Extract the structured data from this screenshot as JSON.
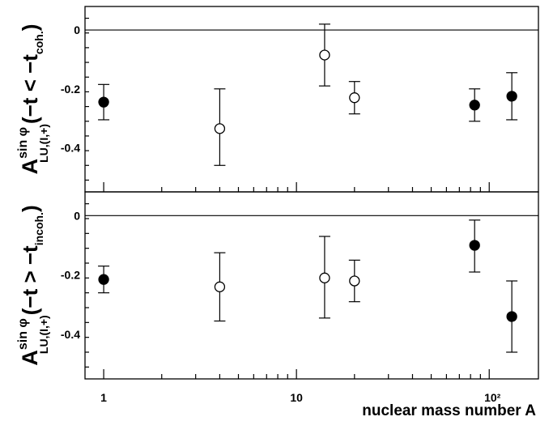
{
  "chart_data": [
    {
      "type": "scatter",
      "panel": "upper",
      "ylabel": {
        "main": "A",
        "superscript": "sin φ",
        "subscript": "LU,(I,+)",
        "condition_pre": "(−t < −t",
        "condition_sub": "coh.",
        "condition_post": ")"
      },
      "xscale": "log",
      "xlim": [
        0.8,
        180
      ],
      "ylim": [
        -0.55,
        0.08
      ],
      "yticks": [
        0,
        -0.2,
        -0.4
      ],
      "ytick_labels": [
        "0",
        "-0.2",
        "-0.4"
      ],
      "zero_line": true,
      "series": [
        {
          "marker": "filled",
          "points": [
            {
              "x": 1,
              "y": -0.245,
              "err_low": -0.305,
              "err_high": -0.185
            },
            {
              "x": 84,
              "y": -0.255,
              "err_low": -0.31,
              "err_high": -0.2
            },
            {
              "x": 131,
              "y": -0.225,
              "err_low": -0.305,
              "err_high": -0.145
            }
          ]
        },
        {
          "marker": "open",
          "points": [
            {
              "x": 4,
              "y": -0.335,
              "err_low": -0.46,
              "err_high": -0.2
            },
            {
              "x": 14,
              "y": -0.085,
              "err_low": -0.19,
              "err_high": 0.02
            },
            {
              "x": 20,
              "y": -0.23,
              "err_low": -0.285,
              "err_high": -0.175
            }
          ]
        }
      ]
    },
    {
      "type": "scatter",
      "panel": "lower",
      "ylabel": {
        "main": "A",
        "superscript": "sin φ",
        "subscript": "LU,(I,+)",
        "condition_pre": "(−t > −t",
        "condition_sub": "incoh.",
        "condition_post": ")"
      },
      "xscale": "log",
      "xlim": [
        0.8,
        180
      ],
      "xlabel": "nuclear mass number A",
      "xtick_labels": [
        "1",
        "10",
        "10²"
      ],
      "ylim": [
        -0.55,
        0.08
      ],
      "yticks": [
        0,
        -0.2,
        -0.4
      ],
      "ytick_labels": [
        "0",
        "-0.2",
        "-0.4"
      ],
      "zero_line": true,
      "series": [
        {
          "marker": "filled",
          "points": [
            {
              "x": 1,
              "y": -0.215,
              "err_low": -0.26,
              "err_high": -0.17
            },
            {
              "x": 84,
              "y": -0.1,
              "err_low": -0.19,
              "err_high": -0.015
            },
            {
              "x": 131,
              "y": -0.34,
              "err_low": -0.46,
              "err_high": -0.22
            }
          ]
        },
        {
          "marker": "open",
          "points": [
            {
              "x": 4,
              "y": -0.24,
              "err_low": -0.355,
              "err_high": -0.125
            },
            {
              "x": 14,
              "y": -0.21,
              "err_low": -0.345,
              "err_high": -0.07
            },
            {
              "x": 20,
              "y": -0.22,
              "err_low": -0.29,
              "err_high": -0.15
            }
          ]
        }
      ]
    }
  ]
}
